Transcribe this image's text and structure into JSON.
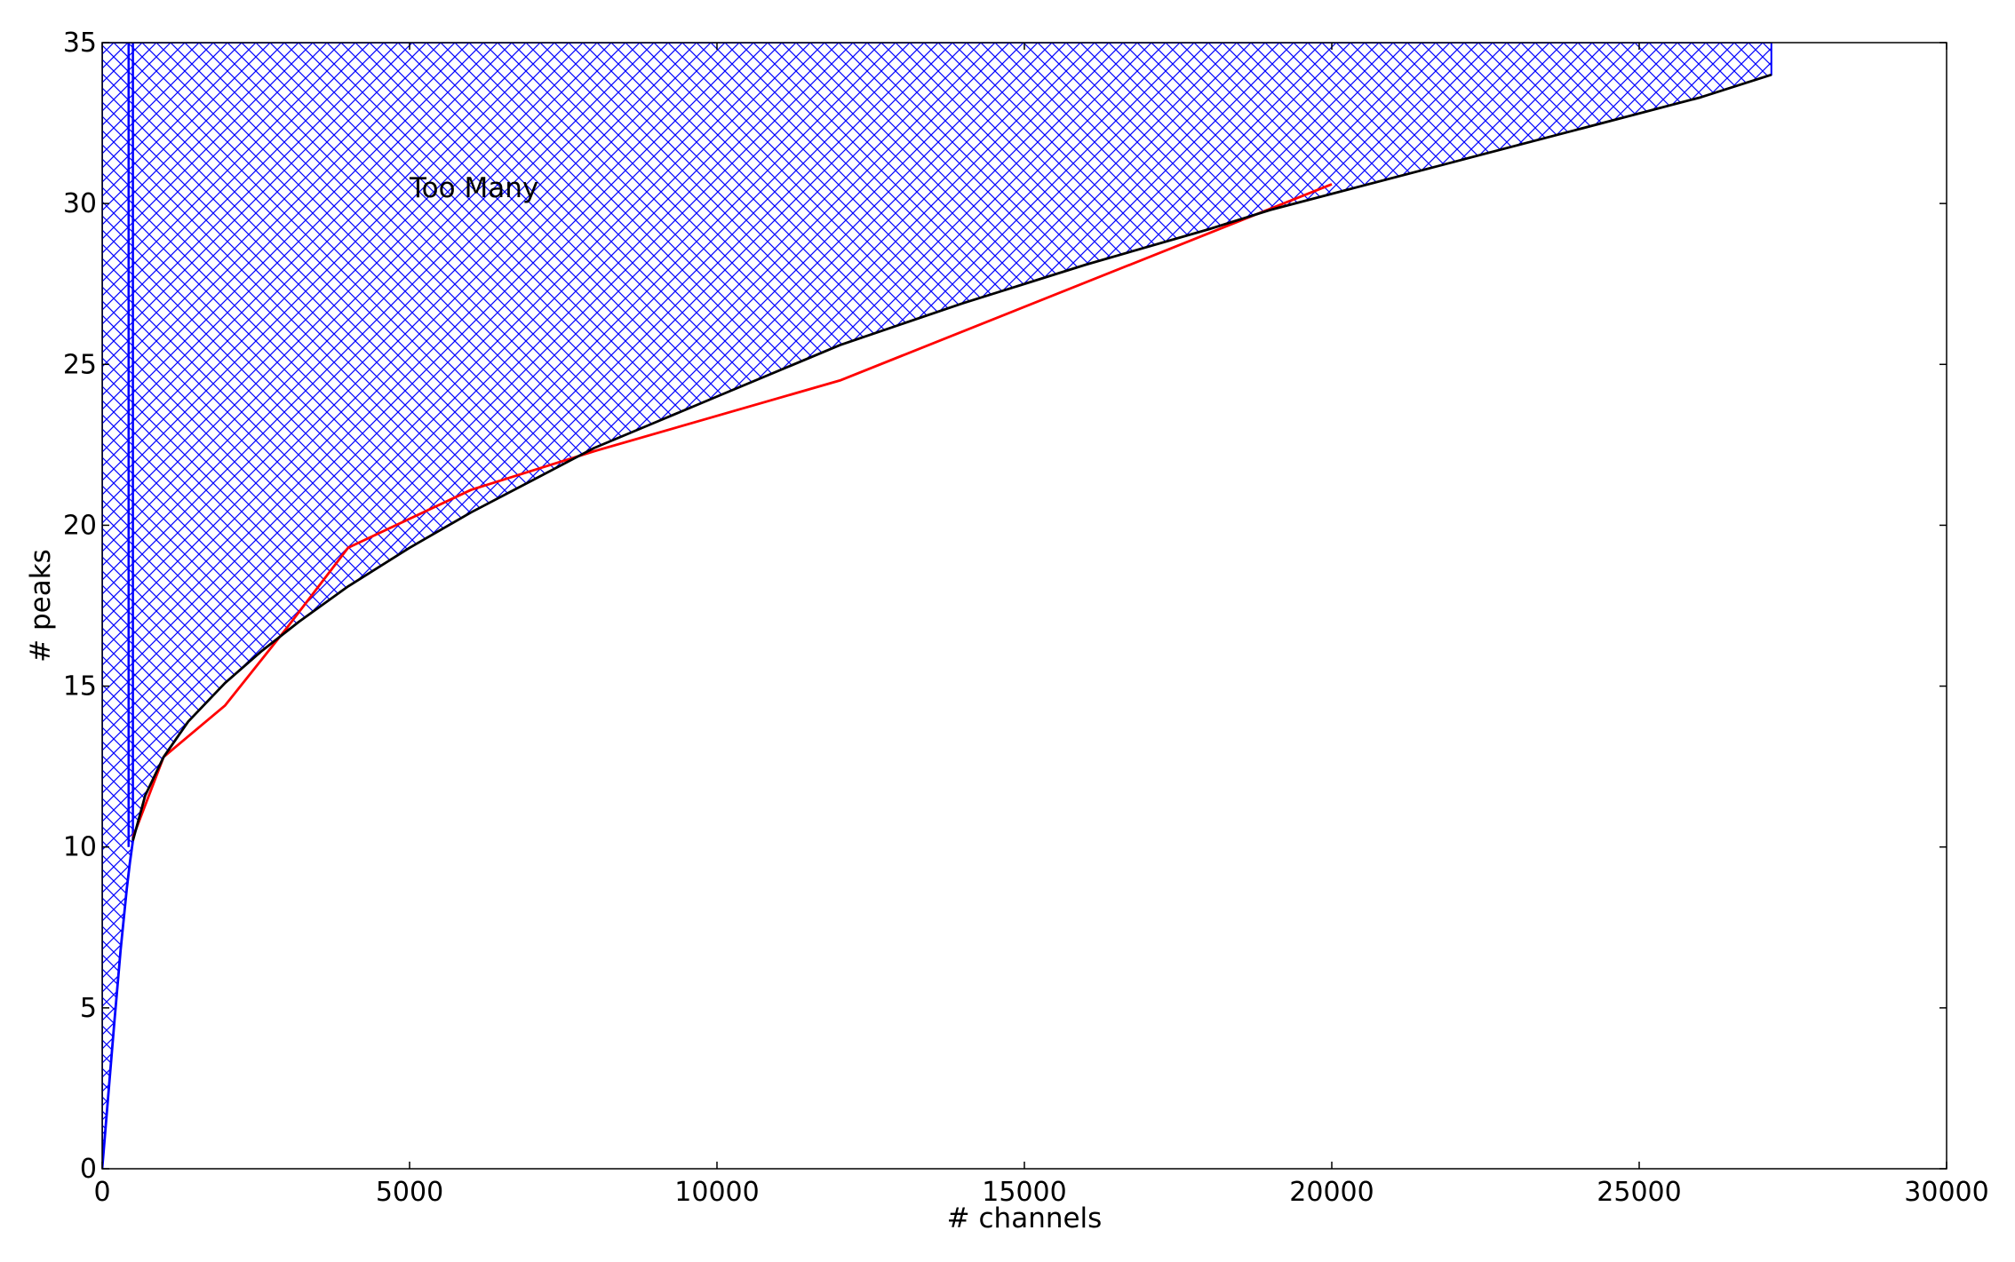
{
  "chart_data": {
    "type": "line",
    "xlabel": "# channels",
    "ylabel": "# peaks",
    "xlim": [
      0,
      30000
    ],
    "ylim": [
      0,
      35
    ],
    "xticks": [
      0,
      5000,
      10000,
      15000,
      20000,
      25000,
      30000
    ],
    "yticks": [
      0,
      5,
      10,
      15,
      20,
      25,
      30,
      35
    ],
    "grid": false,
    "annotations": [
      {
        "text": "Too Many",
        "x": 5000,
        "y": 30.2
      }
    ],
    "fill_region": {
      "hatch": "crosshatch",
      "color": "#0000ff",
      "upper_y": 35
    },
    "series": [
      {
        "color": "#000000",
        "x": [
          500,
          700,
          1000,
          1400,
          2000,
          2600,
          3200,
          4000,
          5000,
          6000,
          7000,
          8000,
          9000,
          10000,
          12000,
          14000,
          16000,
          18000,
          19000,
          20000,
          22000,
          24000,
          26000,
          27150
        ],
        "y": [
          10.2,
          11.6,
          12.8,
          13.9,
          15.1,
          16.1,
          17.0,
          18.1,
          19.3,
          20.4,
          21.4,
          22.4,
          23.2,
          24.0,
          25.6,
          26.9,
          28.1,
          29.2,
          29.8,
          30.3,
          31.3,
          32.3,
          33.3,
          34.0
        ]
      },
      {
        "color": "#ff0000",
        "x": [
          500,
          1000,
          2000,
          3000,
          4000,
          6000,
          8000,
          12000,
          20000
        ],
        "y": [
          10.3,
          12.8,
          14.4,
          16.8,
          19.3,
          21.1,
          22.3,
          24.5,
          30.6
        ]
      },
      {
        "color": "#0000ff",
        "x": [
          0,
          100,
          200,
          300,
          400,
          450,
          500
        ],
        "y": [
          0,
          2.3,
          4.6,
          6.8,
          8.7,
          9.5,
          10.2
        ]
      }
    ]
  }
}
